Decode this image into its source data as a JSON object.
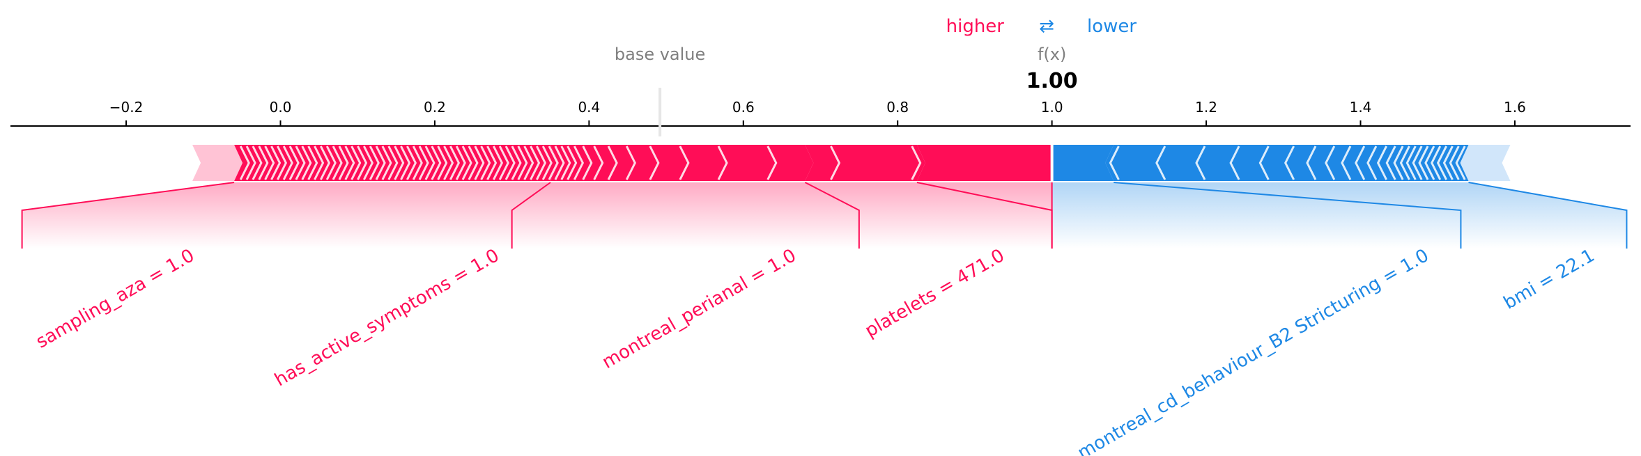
{
  "legend": {
    "higher_label": "higher",
    "lower_label": "lower",
    "arrows": "⇄"
  },
  "header": {
    "base_value_label": "base value",
    "fx_label": "f(x)",
    "fx_value_label": "1.00"
  },
  "colors": {
    "positive": "#ff0d57",
    "negative": "#1e88e5",
    "positive_light": "#ffc3d5",
    "negative_light": "#d1e6fa",
    "axis": "#000000",
    "muted": "#7f7f7f"
  },
  "chart_data": {
    "type": "force",
    "base_value": 0.4919,
    "output_value": 1.0,
    "xlim": [
      -0.35,
      1.75
    ],
    "tick_labels": [
      "−0.2",
      "0.0",
      "0.2",
      "0.4",
      "0.6",
      "0.8",
      "1.0",
      "1.2",
      "1.4",
      "1.6"
    ],
    "tick_values": [
      -0.2,
      0.0,
      0.2,
      0.4,
      0.6,
      0.8,
      1.0,
      1.2,
      1.4,
      1.6
    ],
    "positive_features": [
      {
        "label": "platelets = 471.0",
        "left": 0.825,
        "right": 1.0
      },
      {
        "label": "montreal_perianal = 1.0",
        "left": 0.68,
        "right": 0.825
      },
      {
        "label": "has_active_symptoms = 1.0",
        "left": 0.35,
        "right": 0.68
      },
      {
        "label": "sampling_aza = 1.0",
        "left": -0.06,
        "right": 0.35
      }
    ],
    "negative_features": [
      {
        "label": "montreal_cd_behaviour_B2 Stricturing = 1.0",
        "left": 1.0,
        "right": 1.08
      },
      {
        "label": "bmi = 22.1",
        "left": 1.08,
        "right": 1.54
      }
    ]
  }
}
